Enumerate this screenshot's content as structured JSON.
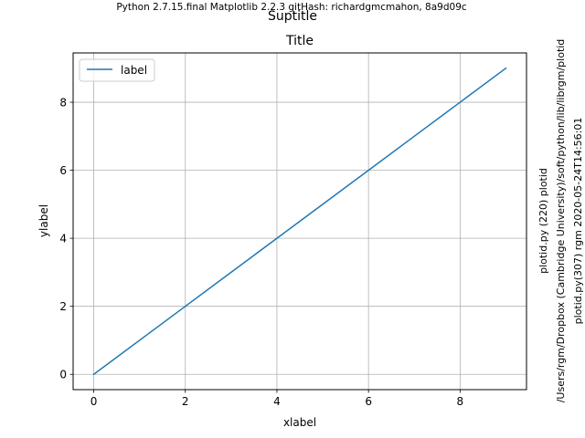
{
  "header": {
    "version_text": "Python 2.7.15.final  Matplotlib 2.2.3  gitHash: richardgmcmahon, 8a9d09c",
    "suptitle": "Suptitle"
  },
  "side_notes": {
    "line1": "plotid.py (220) plotid",
    "line2": "/Users/rgm/Dropbox (Cambridge University)/soft/python/lib/librgm/plotid",
    "line3": "plotid.py(307) rgm 2020-05-24T14:56:01"
  },
  "chart_data": {
    "type": "line",
    "title": "Title",
    "xlabel": "xlabel",
    "ylabel": "ylabel",
    "x": [
      0,
      1,
      2,
      3,
      4,
      5,
      6,
      7,
      8,
      9
    ],
    "series": [
      {
        "name": "label",
        "values": [
          0,
          1,
          2,
          3,
          4,
          5,
          6,
          7,
          8,
          9
        ],
        "color": "#1f77b4"
      }
    ],
    "xlim": [
      -0.45,
      9.45
    ],
    "ylim": [
      -0.45,
      9.45
    ],
    "xticks": [
      0,
      2,
      4,
      6,
      8
    ],
    "yticks": [
      0,
      2,
      4,
      6,
      8
    ],
    "grid": true,
    "legend_position": "top-left"
  }
}
